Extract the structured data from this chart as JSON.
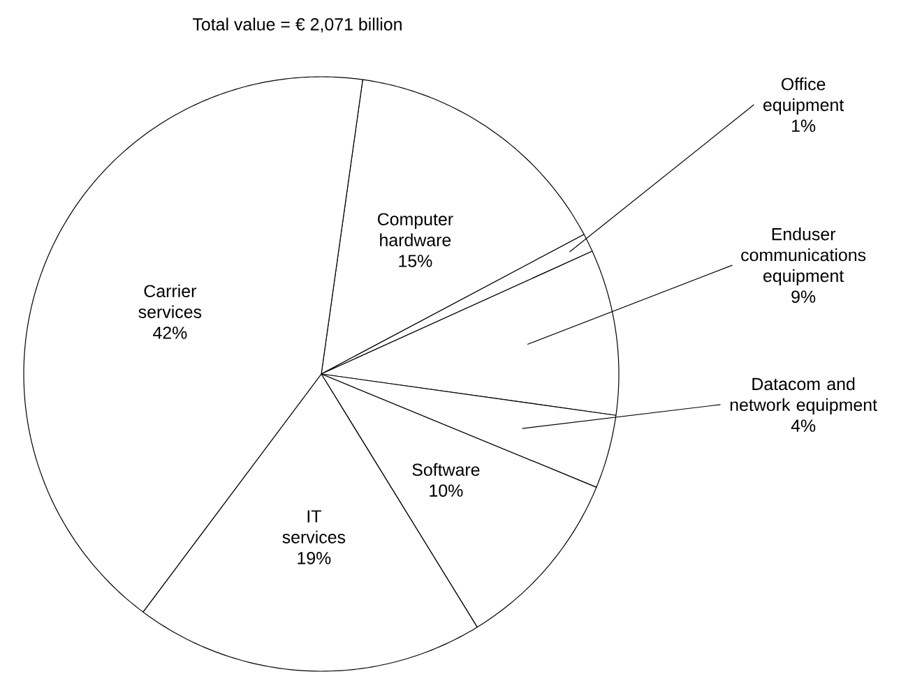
{
  "chart_data": {
    "type": "pie",
    "title": "Total value = € 2,071 billion",
    "categories": [
      "Computer hardware",
      "Office equipment",
      "Enduser communications equipment",
      "Datacom and network equipment",
      "Software",
      "IT services",
      "Carrier services"
    ],
    "values": [
      15,
      1,
      9,
      4,
      10,
      19,
      42
    ],
    "value_labels": [
      "15%",
      "1%",
      "9%",
      "4%",
      "10%",
      "19%",
      "42%"
    ],
    "colors": [
      "#ffffff",
      "#ffffff",
      "#ffffff",
      "#ffffff",
      "#ffffff",
      "#ffffff",
      "#ffffff"
    ]
  }
}
